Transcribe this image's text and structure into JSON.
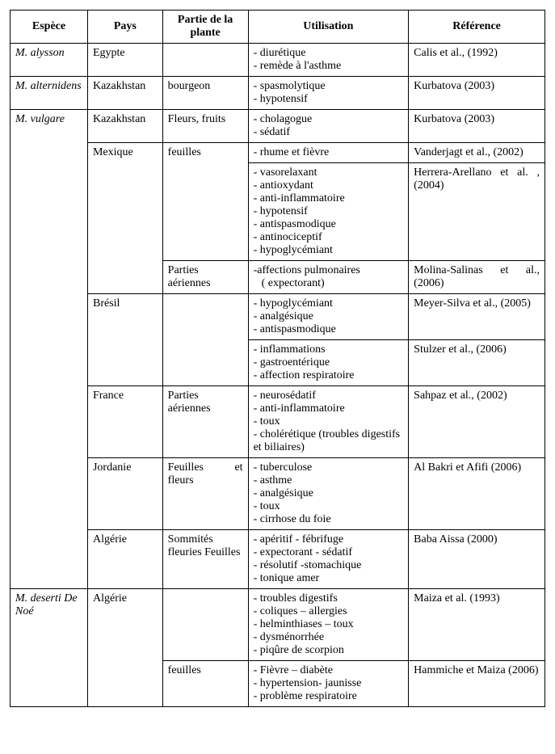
{
  "headers": {
    "espece": "Espèce",
    "pays": "Pays",
    "partie": "Partie de la plante",
    "utilisation": "Utilisation",
    "reference": "Référence"
  },
  "rows": {
    "alysson": {
      "espece": "M. alysson",
      "pays": "Egypte",
      "partie": "",
      "uses": [
        "diurétique",
        "remède à l'asthme"
      ],
      "ref": "Calis et al., (1992)"
    },
    "alternidens": {
      "espece": "M. alternidens",
      "pays": "Kazakhstan",
      "partie": "bourgeon",
      "uses": [
        "spasmolytique",
        "hypotensif"
      ],
      "ref": "Kurbatova (2003)"
    },
    "vulgare": {
      "espece": "M. vulgare",
      "kaz": {
        "pays": "Kazakhstan",
        "partie": "Fleurs, fruits",
        "uses": [
          "cholagogue",
          "sédatif"
        ],
        "ref": "Kurbatova (2003)"
      },
      "mex1": {
        "pays": "Mexique",
        "partie": "feuilles",
        "uses": [
          "rhume et fièvre"
        ],
        "ref": "Vanderjagt et al., (2002)"
      },
      "mex2": {
        "uses": [
          "vasorelaxant",
          "antioxydant",
          "anti-inflammatoire",
          "hypotensif",
          "antispasmodique",
          "antinociceptif",
          "hypoglycémiant"
        ],
        "ref": "Herrera-Arellano et al. , (2004)"
      },
      "mex3": {
        "partie": "Parties aériennes",
        "use_line1": "-affections pulmonaires",
        "use_line2": "( expectorant)",
        "ref": "Molina-Salinas et al., (2006)"
      },
      "bre1": {
        "pays": "Brésil",
        "partie": "",
        "uses": [
          "hypoglycémiant",
          "analgésique",
          "antispasmodique"
        ],
        "ref": "Meyer-Silva et al., (2005)"
      },
      "bre2": {
        "uses": [
          "inflammations",
          "gastroentérique",
          "affection respiratoire"
        ],
        "ref": "Stulzer et al., (2006)"
      },
      "fra": {
        "pays": "France",
        "partie": "Parties aériennes",
        "uses": [
          "neurosédatif",
          "anti-inflammatoire",
          "toux",
          " cholérétique (troubles digestifs et biliaires)"
        ],
        "ref": "Sahpaz et al., (2002)"
      },
      "jor": {
        "pays": "Jordanie",
        "partie": "Feuilles et fleurs",
        "uses": [
          "tuberculose",
          "asthme",
          "analgésique",
          "toux",
          "cirrhose du foie"
        ],
        "ref": "Al Bakri et Afifi (2006)"
      },
      "alg": {
        "pays": "Algérie",
        "partie": "Sommités fleuries Feuilles",
        "uses": [
          "apéritif - fébrifuge",
          "expectorant - sédatif",
          "résolutif -stomachique",
          "tonique amer"
        ],
        "ref": "Baba Aissa (2000)"
      }
    },
    "deserti": {
      "espece": "M. deserti De Noé",
      "alg1": {
        "pays": "Algérie",
        "partie": "",
        "uses": [
          "troubles digestifs",
          "coliques – allergies",
          "helminthiases – toux",
          "dysménorrhée",
          "piqûre de scorpion"
        ],
        "ref": "Maiza et al. (1993)"
      },
      "alg2": {
        "partie": "feuilles",
        "uses": [
          "Fièvre  – diabète",
          "hypertension- jaunisse",
          "problème respiratoire"
        ],
        "ref": "Hammiche et Maiza (2006)"
      }
    }
  }
}
